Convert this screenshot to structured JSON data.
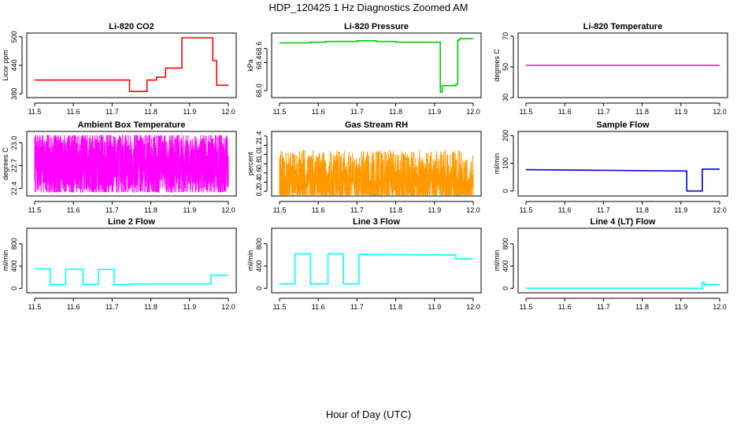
{
  "figure": {
    "title": "HDP_120425  1 Hz Diagnostics Zoomed AM",
    "xlabel": "Hour of Day (UTC)"
  },
  "chart_data": [
    {
      "type": "line",
      "title": "Li-820 CO2",
      "ylabel": "Licor ppm",
      "color": "#ff0000",
      "xlim": [
        11.5,
        12.0
      ],
      "ylim": [
        372,
        508
      ],
      "xticks": [
        "11.5",
        "11.6",
        "11.7",
        "11.8",
        "11.9",
        "12.0"
      ],
      "yticks": [
        {
          "v": 380,
          "label": "380"
        },
        {
          "v": 440,
          "label": "440"
        },
        {
          "v": 500,
          "label": "500"
        }
      ],
      "style": "step",
      "series": [
        {
          "x": [
            11.5,
            11.745,
            11.745,
            11.79,
            11.79,
            11.815,
            11.815,
            11.838,
            11.838,
            11.88,
            11.88,
            11.96,
            11.96,
            11.97,
            11.97,
            12.0
          ],
          "y": [
            409,
            409,
            385,
            385,
            409,
            409,
            415,
            415,
            434,
            434,
            498,
            498,
            450,
            450,
            398,
            398
          ]
        }
      ]
    },
    {
      "type": "line",
      "title": "Li-820 Pressure",
      "ylabel": "kPa",
      "color": "#00cc00",
      "xlim": [
        11.5,
        12.0
      ],
      "ylim": [
        67.9,
        68.82
      ],
      "xticks": [
        "11.5",
        "11.6",
        "11.7",
        "11.8",
        "11.9",
        "12.0"
      ],
      "yticks": [
        {
          "v": 68.0,
          "label": "68.0"
        },
        {
          "v": 68.4,
          "label": "68.4"
        },
        {
          "v": 68.6,
          "label": "68.6"
        }
      ],
      "style": "step",
      "series": [
        {
          "x": [
            11.5,
            11.58,
            11.58,
            11.62,
            11.62,
            11.7,
            11.7,
            11.75,
            11.75,
            11.8,
            11.8,
            11.915,
            11.915,
            11.92,
            11.92,
            11.955,
            11.955,
            11.96,
            11.96,
            11.965,
            11.965,
            12.0
          ],
          "y": [
            68.68,
            68.68,
            68.69,
            68.69,
            68.7,
            68.7,
            68.71,
            68.71,
            68.7,
            68.7,
            68.69,
            68.69,
            67.98,
            67.98,
            68.07,
            68.07,
            68.09,
            68.09,
            68.72,
            68.72,
            68.74,
            68.74
          ]
        }
      ]
    },
    {
      "type": "line",
      "title": "Li-820 Temperature",
      "ylabel": "degrees C",
      "color": "#ff00ff",
      "xlim": [
        11.5,
        12.0
      ],
      "ylim": [
        30,
        72
      ],
      "xticks": [
        "11.5",
        "11.6",
        "11.7",
        "11.8",
        "11.9",
        "12.0"
      ],
      "yticks": [
        {
          "v": 30,
          "label": "30"
        },
        {
          "v": 50,
          "label": "50"
        },
        {
          "v": 70,
          "label": "70"
        }
      ],
      "style": "step",
      "series": [
        {
          "x": [
            11.5,
            12.0
          ],
          "y": [
            51,
            51
          ]
        }
      ]
    },
    {
      "type": "line",
      "title": "Ambient Box Temperature",
      "ylabel": "degrees C",
      "color": "#ff00ff",
      "xlim": [
        11.5,
        12.0
      ],
      "ylim": [
        22.3,
        23.15
      ],
      "xticks": [
        "11.5",
        "11.6",
        "11.7",
        "11.8",
        "11.9",
        "12.0"
      ],
      "yticks": [
        {
          "v": 22.4,
          "label": "22.4"
        },
        {
          "v": 22.7,
          "label": "22.7"
        },
        {
          "v": 23.0,
          "label": "23.0"
        }
      ],
      "style": "noise",
      "noise": {
        "center": 22.72,
        "spread": 0.42,
        "min": 22.35,
        "max": 23.1,
        "n": 1800,
        "seed": 7
      }
    },
    {
      "type": "line",
      "title": "Gas Stream RH",
      "ylabel": "percent",
      "color": "#ff9900",
      "xlim": [
        11.5,
        12.0
      ],
      "ylim": [
        0.1,
        1.5
      ],
      "xticks": [
        "11.5",
        "11.6",
        "11.7",
        "11.8",
        "11.9",
        "12.0"
      ],
      "yticks": [
        {
          "v": 0.2,
          "label": "0.2"
        },
        {
          "v": 0.4,
          "label": "0.4"
        },
        {
          "v": 0.6,
          "label": "0.6"
        },
        {
          "v": 0.8,
          "label": "0.8"
        },
        {
          "v": 1.0,
          "label": "1.0"
        },
        {
          "v": 1.2,
          "label": "1.2"
        },
        {
          "v": 1.4,
          "label": "1.4"
        }
      ],
      "style": "noise",
      "noise": {
        "center": 0.42,
        "spread": 0.36,
        "min": 0.12,
        "max": 1.42,
        "n": 1800,
        "seed": 23,
        "skew": true
      }
    },
    {
      "type": "line",
      "title": "Sample Flow",
      "ylabel": "ml/min",
      "color": "#0000cc",
      "xlim": [
        11.5,
        12.0
      ],
      "ylim": [
        -18,
        215
      ],
      "xticks": [
        "11.5",
        "11.6",
        "11.7",
        "11.8",
        "11.9",
        "12.0"
      ],
      "yticks": [
        {
          "v": 0,
          "label": "0"
        },
        {
          "v": 100,
          "label": "100"
        },
        {
          "v": 200,
          "label": "200"
        }
      ],
      "style": "step",
      "series": [
        {
          "x": [
            11.5,
            11.915,
            11.915,
            11.955,
            11.955,
            12.0
          ],
          "y": [
            77,
            72,
            0,
            0,
            79,
            79
          ]
        }
      ]
    },
    {
      "type": "line",
      "title": "Line 2 Flow",
      "ylabel": "ml/min",
      "color": "#00ffff",
      "xlim": [
        11.5,
        12.0
      ],
      "ylim": [
        -80,
        1080
      ],
      "xticks": [
        "11.5",
        "11.6",
        "11.7",
        "11.8",
        "11.9",
        "12.0"
      ],
      "yticks": [
        {
          "v": 0,
          "label": "0"
        },
        {
          "v": 400,
          "label": "400"
        },
        {
          "v": 800,
          "label": "800"
        }
      ],
      "style": "step",
      "series": [
        {
          "x": [
            11.5,
            11.54,
            11.54,
            11.58,
            11.58,
            11.625,
            11.625,
            11.665,
            11.665,
            11.705,
            11.705,
            11.75,
            11.75,
            11.955,
            11.955,
            12.0
          ],
          "y": [
            350,
            350,
            70,
            70,
            345,
            345,
            70,
            70,
            340,
            340,
            70,
            70,
            80,
            80,
            240,
            230
          ]
        }
      ]
    },
    {
      "type": "line",
      "title": "Line 3 Flow",
      "ylabel": "ml/min",
      "color": "#00ffff",
      "xlim": [
        11.5,
        12.0
      ],
      "ylim": [
        -80,
        1080
      ],
      "xticks": [
        "11.5",
        "11.6",
        "11.7",
        "11.8",
        "11.9",
        "12.0"
      ],
      "yticks": [
        {
          "v": 0,
          "label": "0"
        },
        {
          "v": 400,
          "label": "400"
        },
        {
          "v": 800,
          "label": "800"
        }
      ],
      "style": "step",
      "series": [
        {
          "x": [
            11.5,
            11.54,
            11.54,
            11.58,
            11.58,
            11.625,
            11.625,
            11.665,
            11.665,
            11.705,
            11.705,
            11.955,
            11.955,
            12.0
          ],
          "y": [
            80,
            80,
            620,
            620,
            80,
            80,
            620,
            620,
            80,
            80,
            610,
            600,
            530,
            530
          ]
        }
      ]
    },
    {
      "type": "line",
      "title": "Line 4 (LT) Flow",
      "ylabel": "ml/min",
      "color": "#00ffff",
      "xlim": [
        11.5,
        12.0
      ],
      "ylim": [
        -80,
        1080
      ],
      "xticks": [
        "11.5",
        "11.6",
        "11.7",
        "11.8",
        "11.9",
        "12.0"
      ],
      "yticks": [
        {
          "v": 0,
          "label": "0"
        },
        {
          "v": 400,
          "label": "400"
        },
        {
          "v": 800,
          "label": "800"
        }
      ],
      "style": "step",
      "series": [
        {
          "x": [
            11.5,
            11.955,
            11.955,
            11.96,
            11.96,
            12.0
          ],
          "y": [
            0,
            0,
            110,
            110,
            70,
            70
          ]
        }
      ]
    }
  ]
}
